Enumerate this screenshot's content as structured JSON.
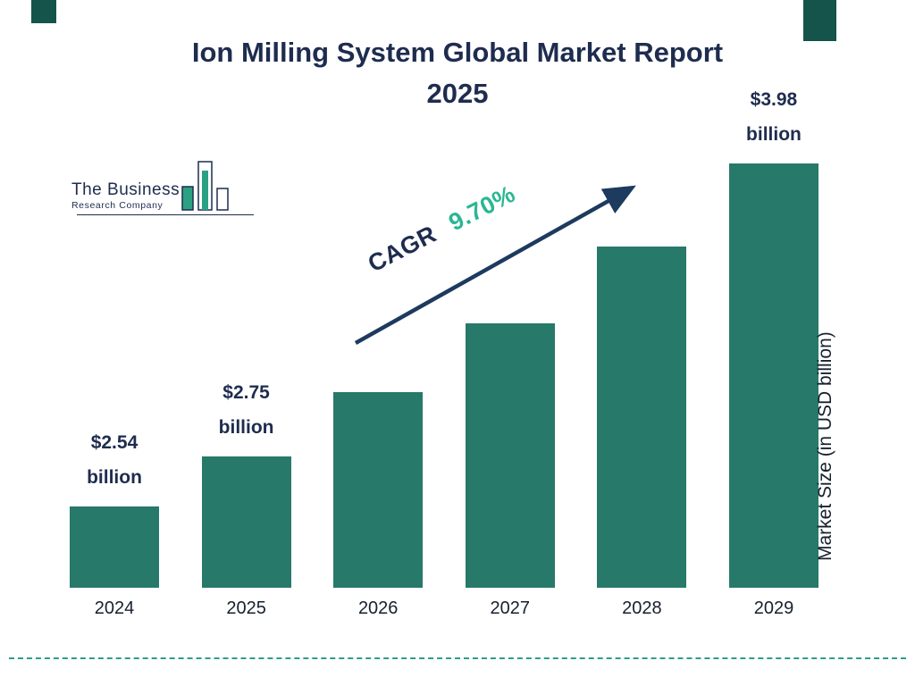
{
  "title": {
    "line1": "Ion Milling System Global Market Report",
    "line2": "2025"
  },
  "logo": {
    "name": "The Business",
    "subtitle": "Research Company"
  },
  "cagr": {
    "label": "CAGR",
    "value": "9.70%"
  },
  "colors": {
    "bar": "#27796A",
    "navy": "#1E2C4F",
    "teal_accent": "#2BB694",
    "dashed_rule": "#2E9C8C",
    "corner_block": "#14544A"
  },
  "chart_data": {
    "type": "bar",
    "title": "Ion Milling System Global Market Report 2025",
    "categories": [
      "2024",
      "2025",
      "2026",
      "2027",
      "2028",
      "2029"
    ],
    "values": [
      2.54,
      2.75,
      3.02,
      3.31,
      3.63,
      3.98
    ],
    "points": [
      {
        "year": "2024",
        "value": 2.54,
        "label": "$2.54 billion"
      },
      {
        "year": "2025",
        "value": 2.75,
        "label": "$2.75 billion"
      },
      {
        "year": "2026",
        "value": 3.02,
        "label": null
      },
      {
        "year": "2027",
        "value": 3.31,
        "label": null
      },
      {
        "year": "2028",
        "value": 3.63,
        "label": null
      },
      {
        "year": "2029",
        "value": 3.98,
        "label": "$3.98 billion"
      }
    ],
    "xlabel": "",
    "ylabel": "Market Size (in USD billion)",
    "ylim": [
      2.2,
      4.0
    ],
    "grid": false,
    "legend": false,
    "annotation": "CAGR 9.70%",
    "bar_color": "#27796A"
  }
}
